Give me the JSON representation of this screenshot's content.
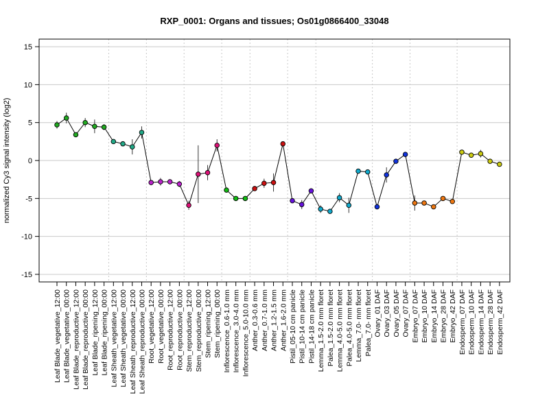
{
  "chart_data": {
    "type": "line",
    "title": "RXP_0001: Organs and tissues; Os01g0866400_33048",
    "xlabel": "",
    "ylabel": "normalized Cy3 signal intensity (log2)",
    "ylim": [
      -16,
      16
    ],
    "yticks": [
      -15,
      -10,
      -5,
      0,
      5,
      10,
      15
    ],
    "grid": "horizontal solid at y ticks; vertical dotted between sample groups",
    "categories": [
      "Leaf Blade_vegetative_12:00",
      "Leaf Blade_vegetative_00:00",
      "Leaf Blade_reproductive_12:00",
      "Leaf Blade_reproductive_00:00",
      "Leaf Blade_ripening_12:00",
      "Leaf Blade_ripening_00:00",
      "Leaf Sheath_vegetative_12:00",
      "Leaf Sheath_vegetative_00:00",
      "Leaf Sheath_reproductive_12:00",
      "Leaf Sheath_reproductive_00:00",
      "Root_vegetative_12:00",
      "Root_vegetative_00:00",
      "Root_reproductive_12:00",
      "Root_reproductive_00:00",
      "Stem_reproductive_12:00",
      "Stem_reproductive_00:00",
      "Stem_ripening_12:00",
      "Stem_ripening_00:00",
      "Inflorescence_0.6-1.0 mm",
      "Inflorescence_3.0-4.0 mm",
      "Inflorescence_5.0-10.0 mm",
      "Anther_0.3-0.6 mm",
      "Anther_0.7-1.0 mm",
      "Anther_1.2-1.5 mm",
      "Anther_1.6-2.0 mm",
      "Pistil_05-10 cm panicle",
      "Pistil_10-14 cm panicle",
      "Pistil_14-18 cm panicle",
      "Lemma_1.5-2.0 mm floret",
      "Palea_1.5-2.0 mm floret",
      "Lemma_4.0-5.0 mm floret",
      "Palea_4.0-5.0 mm floret",
      "Lemma_7.0- mm floret",
      "Palea_7.0- mm floret",
      "Ovary_01 DAF",
      "Ovary_03 DAF",
      "Ovary_05 DAF",
      "Ovary_07 DAF",
      "Embryo_07 DAF",
      "Embryo_10 DAF",
      "Embryo_14 DAF",
      "Embryo_28 DAF",
      "Embryo_42 DAF",
      "Endosperm_07 DAF",
      "Endosperm_10 DAF",
      "Endosperm_14 DAF",
      "Endosperm_28 DAF",
      "Endosperm_42 DAF"
    ],
    "series": [
      {
        "values": [
          4.7,
          5.6,
          3.4,
          5.0,
          4.5,
          4.4,
          2.5,
          2.2,
          1.8,
          3.7,
          -2.9,
          -2.8,
          -2.8,
          -3.1,
          -5.9,
          -1.8,
          -1.6,
          2.0,
          -3.9,
          -5.0,
          -5.0,
          -3.7,
          -3.0,
          -2.9,
          2.2,
          -5.3,
          -5.8,
          -4.0,
          -6.4,
          -6.7,
          -4.9,
          -5.9,
          -1.4,
          -1.5,
          -6.1,
          -1.9,
          -0.1,
          0.8,
          -5.6,
          -5.6,
          -6.1,
          -5.0,
          -5.4,
          1.1,
          0.7,
          0.9,
          -0.1,
          -0.5
        ],
        "errors": [
          0.5,
          0.7,
          0.3,
          0.6,
          0.9,
          0.4,
          0.2,
          0.3,
          1.0,
          0.8,
          0.2,
          0.5,
          0.3,
          0.4,
          0.6,
          3.8,
          1.0,
          0.8,
          0.2,
          0.3,
          0.2,
          0.2,
          0.6,
          1.2,
          0.3,
          0.2,
          0.6,
          0.3,
          0.5,
          0.2,
          0.6,
          1.0,
          0.3,
          0.2,
          0.2,
          1.0,
          0.2,
          0.2,
          1.0,
          0.3,
          0.2,
          0.2,
          0.2,
          0.3,
          0.2,
          0.5,
          0.2,
          0.2
        ],
        "colors": [
          "#22aa22",
          "#22aa22",
          "#22aa22",
          "#22aa22",
          "#22aa22",
          "#22aa22",
          "#22aa88",
          "#22aa88",
          "#22aa88",
          "#22aa88",
          "#bb22cc",
          "#bb22cc",
          "#bb22cc",
          "#bb22cc",
          "#dd1177",
          "#dd1177",
          "#dd1177",
          "#dd1177",
          "#11bb11",
          "#11bb11",
          "#11bb11",
          "#cc1111",
          "#cc1111",
          "#cc1111",
          "#cc1111",
          "#6611dd",
          "#6611dd",
          "#6611dd",
          "#11aacc",
          "#11aacc",
          "#11aacc",
          "#11aacc",
          "#11aacc",
          "#11aacc",
          "#1133dd",
          "#1133dd",
          "#1133dd",
          "#1133dd",
          "#ee7711",
          "#ee7711",
          "#ee7711",
          "#ee7711",
          "#ee7711",
          "#cccc11",
          "#cccc11",
          "#cccc11",
          "#cccc11",
          "#cccc11"
        ]
      }
    ],
    "group_separators_after": [
      5,
      9,
      13,
      17,
      20,
      24,
      27,
      33,
      37,
      42
    ],
    "line_color": "#000000"
  }
}
